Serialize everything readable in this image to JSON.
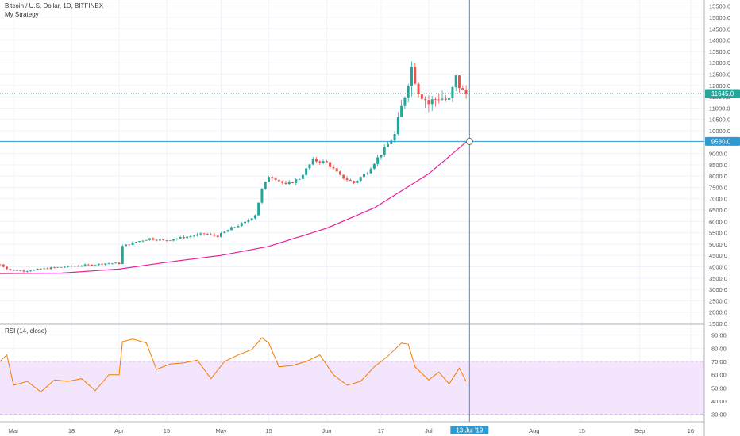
{
  "header": {
    "symbol": "Bitcoin / U.S. Dollar, 1D, BITFINEX",
    "strategy": "My Strategy"
  },
  "rsi_title": "RSI (14, close)",
  "crosshair": {
    "price_label": "9530.0",
    "date_label": "13 Jul '19"
  },
  "last_price_label": "11645.0",
  "colors": {
    "up": "#26a69a",
    "down": "#ef5350",
    "ma": "#e91e98",
    "rsi": "#f57c00",
    "rsi_band": "#f3e5fc",
    "crosshair": "#2e9ad0",
    "grid": "#f0f3fa"
  },
  "chart_data": [
    {
      "type": "candlestick",
      "price_axis_ticks": [
        "1500.0",
        "2000.0",
        "2500.0",
        "3000.0",
        "3500.0",
        "4000.0",
        "4500.0",
        "5000.0",
        "5500.0",
        "6000.0",
        "6500.0",
        "7000.0",
        "7500.0",
        "8000.0",
        "8500.0",
        "9000.0",
        "9500.0",
        "10000.0",
        "10500.0",
        "11000.0",
        "11500.0",
        "12000.0",
        "12500.0",
        "13000.0",
        "13500.0",
        "14000.0",
        "14500.0",
        "15000.0",
        "15500.0"
      ],
      "ylim": [
        1500,
        15700
      ],
      "date_axis_ticks": [
        "Mar",
        "18",
        "Apr",
        "15",
        "May",
        "15",
        "Jun",
        "17",
        "Jul",
        "Aug",
        "15",
        "Sep",
        "16"
      ],
      "close_series": [
        [
          "2019-02-25",
          4100
        ],
        [
          "2019-02-28",
          3850
        ],
        [
          "2019-03-04",
          3820
        ],
        [
          "2019-03-08",
          3880
        ],
        [
          "2019-03-12",
          3950
        ],
        [
          "2019-03-16",
          4000
        ],
        [
          "2019-03-20",
          4050
        ],
        [
          "2019-03-24",
          4080
        ],
        [
          "2019-03-28",
          4150
        ],
        [
          "2019-04-01",
          4150
        ],
        [
          "2019-04-02",
          4900
        ],
        [
          "2019-04-06",
          5100
        ],
        [
          "2019-04-10",
          5250
        ],
        [
          "2019-04-14",
          5150
        ],
        [
          "2019-04-18",
          5250
        ],
        [
          "2019-04-22",
          5350
        ],
        [
          "2019-04-26",
          5450
        ],
        [
          "2019-04-30",
          5350
        ],
        [
          "2019-05-04",
          5700
        ],
        [
          "2019-05-08",
          5950
        ],
        [
          "2019-05-11",
          6300
        ],
        [
          "2019-05-13",
          7400
        ],
        [
          "2019-05-15",
          8000
        ],
        [
          "2019-05-17",
          7900
        ],
        [
          "2019-05-20",
          7600
        ],
        [
          "2019-05-24",
          7900
        ],
        [
          "2019-05-28",
          8700
        ],
        [
          "2019-06-01",
          8600
        ],
        [
          "2019-06-05",
          8000
        ],
        [
          "2019-06-09",
          7700
        ],
        [
          "2019-06-13",
          8200
        ],
        [
          "2019-06-17",
          9000
        ],
        [
          "2019-06-21",
          9800
        ],
        [
          "2019-06-23",
          11000
        ],
        [
          "2019-06-26",
          12800
        ],
        [
          "2019-06-28",
          11800
        ],
        [
          "2019-07-01",
          11200
        ],
        [
          "2019-07-04",
          11500
        ],
        [
          "2019-07-07",
          11300
        ],
        [
          "2019-07-09",
          12300
        ],
        [
          "2019-07-11",
          11700
        ],
        [
          "2019-07-12",
          11645
        ]
      ],
      "moving_average": [
        [
          "2019-02-25",
          3700
        ],
        [
          "2019-03-15",
          3720
        ],
        [
          "2019-04-01",
          3900
        ],
        [
          "2019-04-15",
          4200
        ],
        [
          "2019-05-01",
          4500
        ],
        [
          "2019-05-15",
          4900
        ],
        [
          "2019-06-01",
          5700
        ],
        [
          "2019-06-15",
          6600
        ],
        [
          "2019-07-01",
          8100
        ],
        [
          "2019-07-12",
          9500
        ]
      ],
      "crosshair": {
        "date": "2019-07-13",
        "price": 9530
      },
      "last_price": 11645
    },
    {
      "type": "line",
      "title": "RSI (14, close)",
      "y_ticks": [
        "30.00",
        "40.00",
        "50.00",
        "60.00",
        "70.00",
        "80.00",
        "90.00"
      ],
      "ylim": [
        25,
        97
      ],
      "band": [
        30,
        70
      ],
      "series": [
        [
          "2019-02-25",
          70
        ],
        [
          "2019-02-27",
          75
        ],
        [
          "2019-03-01",
          52
        ],
        [
          "2019-03-05",
          55
        ],
        [
          "2019-03-09",
          47
        ],
        [
          "2019-03-13",
          56
        ],
        [
          "2019-03-17",
          55
        ],
        [
          "2019-03-21",
          57
        ],
        [
          "2019-03-25",
          48
        ],
        [
          "2019-03-29",
          60
        ],
        [
          "2019-04-01",
          60
        ],
        [
          "2019-04-02",
          85
        ],
        [
          "2019-04-05",
          87
        ],
        [
          "2019-04-09",
          84
        ],
        [
          "2019-04-12",
          64
        ],
        [
          "2019-04-16",
          68
        ],
        [
          "2019-04-20",
          69
        ],
        [
          "2019-04-24",
          71
        ],
        [
          "2019-04-28",
          57
        ],
        [
          "2019-05-02",
          70
        ],
        [
          "2019-05-06",
          75
        ],
        [
          "2019-05-10",
          79
        ],
        [
          "2019-05-13",
          88
        ],
        [
          "2019-05-15",
          84
        ],
        [
          "2019-05-18",
          66
        ],
        [
          "2019-05-22",
          67
        ],
        [
          "2019-05-26",
          70
        ],
        [
          "2019-05-30",
          75
        ],
        [
          "2019-06-03",
          60
        ],
        [
          "2019-06-07",
          52
        ],
        [
          "2019-06-11",
          55
        ],
        [
          "2019-06-15",
          66
        ],
        [
          "2019-06-19",
          74
        ],
        [
          "2019-06-23",
          84
        ],
        [
          "2019-06-25",
          83
        ],
        [
          "2019-06-27",
          66
        ],
        [
          "2019-07-01",
          56
        ],
        [
          "2019-07-04",
          62
        ],
        [
          "2019-07-07",
          53
        ],
        [
          "2019-07-10",
          65
        ],
        [
          "2019-07-12",
          55
        ]
      ]
    }
  ]
}
